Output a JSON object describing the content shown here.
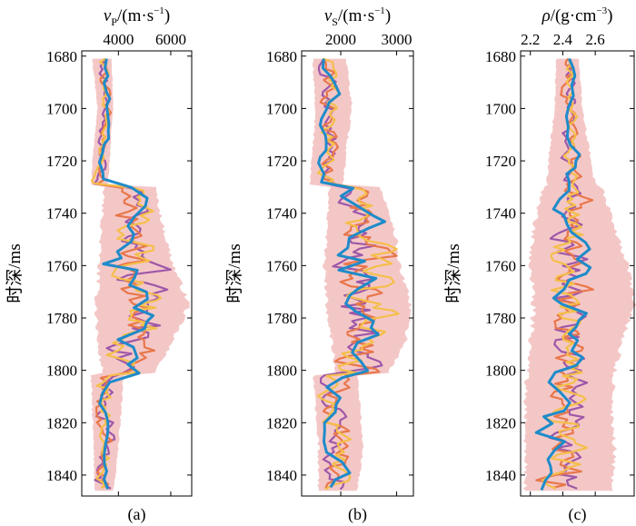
{
  "chart_data": [
    {
      "type": "line",
      "panel_label": "(a)",
      "xlabel_symbol": "v",
      "xlabel_sub": "P",
      "xlabel_unit": "/(m·s",
      "xlabel_unit_exp": "−1",
      "xlabel_close": ")",
      "ylabel": "时深/ms",
      "xlim": [
        2600,
        6800
      ],
      "xticks": [
        4000,
        6000
      ],
      "xtick_labels": [
        "4000",
        "6000"
      ],
      "ylim": [
        1678,
        1848
      ],
      "yticks": [
        1680,
        1700,
        1720,
        1740,
        1760,
        1780,
        1800,
        1820,
        1840
      ],
      "ytick_labels": [
        "1680",
        "1700",
        "1720",
        "1740",
        "1760",
        "1780",
        "1800",
        "1820",
        "1840"
      ],
      "x_axis_position": "top",
      "layers": {
        "t": [
          1681,
          1700,
          1715,
          1729,
          1730,
          1745,
          1760,
          1775,
          1790,
          1801,
          1802,
          1815,
          1830,
          1846
        ],
        "band_lo": [
          3000,
          3200,
          3050,
          2950,
          3450,
          3350,
          3250,
          3150,
          3200,
          3400,
          2950,
          3000,
          3050,
          3100
        ],
        "band_hi": [
          3750,
          3800,
          3700,
          3600,
          5400,
          5700,
          6100,
          6700,
          6000,
          5400,
          4200,
          4100,
          4000,
          3800
        ],
        "centre": [
          3400,
          3550,
          3400,
          3250,
          4600,
          4700,
          4800,
          4700,
          4500,
          4300,
          3600,
          3550,
          3500,
          3450
        ],
        "spread": [
          200,
          150,
          170,
          180,
          500,
          700,
          900,
          1000,
          800,
          600,
          350,
          320,
          300,
          280
        ]
      },
      "series_colors": [
        "#9E58A8",
        "#E8774A",
        "#F4BF4A",
        "#1F8BC9"
      ],
      "band_color": "#F4C7C7"
    },
    {
      "type": "line",
      "panel_label": "(b)",
      "xlabel_symbol": "v",
      "xlabel_sub": "S",
      "xlabel_unit": "/(m·s",
      "xlabel_unit_exp": "−1",
      "xlabel_close": ")",
      "ylabel": "时深/ms",
      "xlim": [
        1300,
        3300
      ],
      "xticks": [
        2000,
        3000
      ],
      "xtick_labels": [
        "2000",
        "3000"
      ],
      "ylim": [
        1678,
        1848
      ],
      "yticks": [
        1680,
        1700,
        1720,
        1740,
        1760,
        1780,
        1800,
        1820,
        1840
      ],
      "ytick_labels": [
        "1680",
        "1700",
        "1720",
        "1740",
        "1760",
        "1780",
        "1800",
        "1820",
        "1840"
      ],
      "x_axis_position": "top",
      "layers": {
        "t": [
          1681,
          1700,
          1715,
          1729,
          1730,
          1745,
          1760,
          1775,
          1790,
          1801,
          1802,
          1815,
          1830,
          1846
        ],
        "band_lo": [
          1500,
          1550,
          1500,
          1450,
          1800,
          1750,
          1700,
          1750,
          1850,
          1900,
          1500,
          1550,
          1600,
          1600
        ],
        "band_hi": [
          2100,
          2200,
          2100,
          2050,
          2700,
          2950,
          3050,
          3250,
          3150,
          2850,
          2300,
          2350,
          2400,
          2300
        ],
        "centre": [
          1800,
          1850,
          1800,
          1750,
          2300,
          2400,
          2450,
          2500,
          2450,
          2350,
          1900,
          1950,
          1950,
          1950
        ],
        "spread": [
          150,
          160,
          150,
          140,
          250,
          350,
          450,
          500,
          450,
          350,
          250,
          250,
          250,
          230
        ]
      },
      "series_colors": [
        "#9E58A8",
        "#E8774A",
        "#F4BF4A",
        "#1F8BC9"
      ],
      "band_color": "#F4C7C7"
    },
    {
      "type": "line",
      "panel_label": "(c)",
      "xlabel_symbol": "ρ",
      "xlabel_sub": "",
      "xlabel_unit": "/(g·cm",
      "xlabel_unit_exp": "−3",
      "xlabel_close": ")",
      "ylabel": "时深/ms",
      "xlim": [
        2.14,
        2.84
      ],
      "xticks": [
        2.2,
        2.4,
        2.6
      ],
      "xtick_labels": [
        "2.2",
        "2.4",
        "2.6"
      ],
      "ylim": [
        1678,
        1848
      ],
      "yticks": [
        1680,
        1700,
        1720,
        1740,
        1760,
        1780,
        1800,
        1820,
        1840
      ],
      "ytick_labels": [
        "1680",
        "1700",
        "1720",
        "1740",
        "1760",
        "1780",
        "1800",
        "1820",
        "1840"
      ],
      "x_axis_position": "top",
      "layers": {
        "t": [
          1681,
          1700,
          1715,
          1729,
          1730,
          1745,
          1760,
          1775,
          1790,
          1801,
          1802,
          1815,
          1830,
          1846
        ],
        "band_lo": [
          2.36,
          2.35,
          2.32,
          2.3,
          2.28,
          2.22,
          2.2,
          2.22,
          2.2,
          2.18,
          2.18,
          2.17,
          2.17,
          2.17
        ],
        "band_hi": [
          2.5,
          2.52,
          2.56,
          2.6,
          2.64,
          2.72,
          2.8,
          2.84,
          2.76,
          2.72,
          2.72,
          2.7,
          2.72,
          2.7
        ],
        "centre": [
          2.44,
          2.44,
          2.45,
          2.46,
          2.47,
          2.46,
          2.46,
          2.47,
          2.45,
          2.42,
          2.4,
          2.4,
          2.4,
          2.4
        ],
        "spread": [
          0.03,
          0.04,
          0.05,
          0.06,
          0.08,
          0.1,
          0.12,
          0.14,
          0.12,
          0.12,
          0.13,
          0.13,
          0.13,
          0.13
        ]
      },
      "series_colors": [
        "#9E58A8",
        "#E8774A",
        "#F4BF4A",
        "#1F8BC9"
      ],
      "band_color": "#F4C7C7"
    }
  ]
}
